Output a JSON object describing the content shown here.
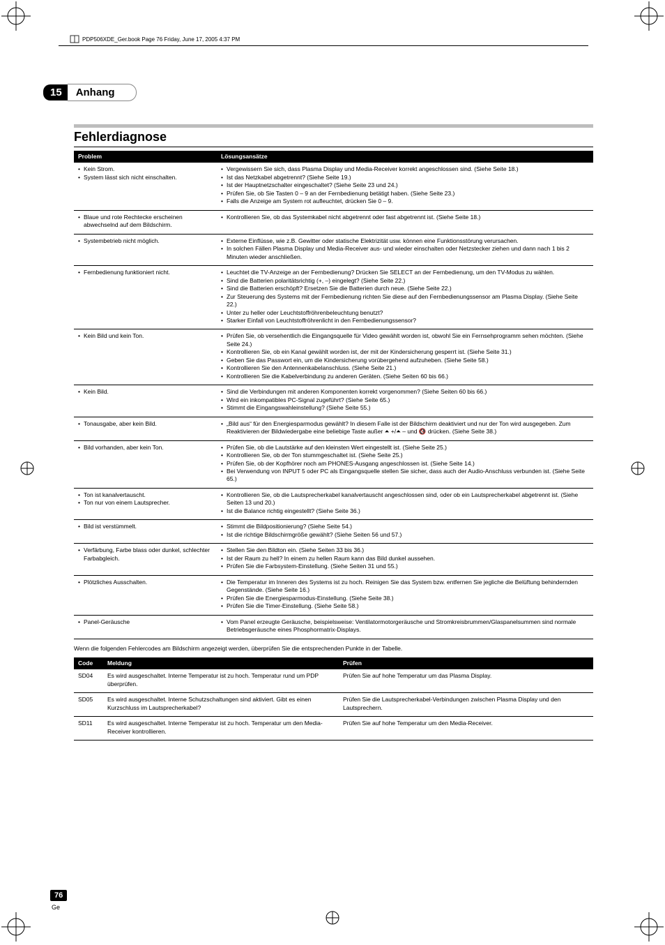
{
  "header": {
    "filename": "PDP506XDE_Ger.book  Page 76  Friday, June 17, 2005  4:37 PM"
  },
  "chapter": {
    "number": "15",
    "title": "Anhang"
  },
  "section_title": "Fehlerdiagnose",
  "trouble_headers": {
    "problem": "Problem",
    "solution": "Lösungsansätze"
  },
  "trouble": [
    {
      "problem": [
        "Kein Strom.",
        "System lässt sich nicht einschalten."
      ],
      "solution": [
        "Vergewissern Sie sich, dass Plasma Display und Media-Receiver korrekt angeschlossen sind. (Siehe Seite 18.)",
        "Ist das Netzkabel abgetrennt? (Siehe Seite 19.)",
        "Ist der Hauptnetzschalter eingeschaltet? (Siehe Seite 23 und 24.)",
        "Prüfen Sie, ob Sie Tasten 0 – 9 an der Fernbedienung betätigt haben. (Siehe Seite 23.)",
        "Falls die Anzeige am System rot aufleuchtet, drücken Sie 0 – 9."
      ]
    },
    {
      "problem": [
        "Blaue und rote Rechtecke erscheinen abwechselnd auf dem Bildschirm."
      ],
      "solution": [
        "Kontrollieren Sie, ob das Systemkabel nicht abgetrennt oder fast abgetrennt ist. (Siehe Seite 18.)"
      ]
    },
    {
      "problem": [
        "Systembetrieb nicht möglich."
      ],
      "solution": [
        "Externe Einflüsse, wie z.B. Gewitter oder statische Elektrizität usw. können eine Funktionsstörung verursachen.",
        "In solchen Fällen Plasma Display und Media-Receiver aus- und wieder einschalten oder Netzstecker ziehen und dann nach 1 bis 2 Minuten wieder anschließen."
      ]
    },
    {
      "problem": [
        "Fernbedienung funktioniert nicht."
      ],
      "solution": [
        "Leuchtet die TV-Anzeige an der Fernbedienung? Drücken Sie SELECT an der Fernbedienung, um den TV-Modus zu wählen.",
        "Sind die Batterien polaritätsrichtig (+, –) eingelegt? (Siehe Seite 22.)",
        "Sind die Batterien erschöpft? Ersetzen Sie die Batterien durch neue. (Siehe Seite 22.)",
        "Zur Steuerung des Systems mit der Fernbedienung richten Sie diese auf den Fernbedienungssensor am Plasma Display. (Siehe Seite 22.)",
        "Unter zu heller oder Leuchtstoffröhrenbeleuchtung benutzt?",
        "Starker Einfall von Leuchtstoffröhrenlicht in den Fernbedienungssensor?"
      ]
    },
    {
      "problem": [
        "Kein Bild und kein Ton."
      ],
      "solution": [
        "Prüfen Sie, ob versehentlich die Eingangsquelle für Video gewählt worden ist, obwohl Sie ein Fernsehprogramm sehen möchten. (Siehe Seite 24.)",
        "Kontrollieren Sie, ob ein Kanal gewählt worden ist, der mit der Kindersicherung gesperrt ist. (Siehe Seite 31.)",
        "Geben Sie das Passwort ein, um die Kindersicherung vorübergehend aufzuheben. (Siehe Seite 58.)",
        "Kontrollieren Sie den Antennenkabelanschluss. (Siehe Seite 21.)",
        "Kontrollieren Sie die Kabelverbindung zu anderen Geräten. (Siehe Seiten 60 bis 66.)"
      ]
    },
    {
      "problem": [
        "Kein Bild."
      ],
      "solution": [
        "Sind die Verbindungen mit anderen Komponenten korrekt vorgenommen? (Siehe Seiten 60 bis 66.)",
        "Wird ein inkompatibles PC-Signal zugeführt? (Siehe Seite 65.)",
        "Stimmt die Eingangswahleinstellung? (Siehe Seite 55.)"
      ]
    },
    {
      "problem": [
        "Tonausgabe, aber kein Bild."
      ],
      "solution": [
        "„Bild aus“ für den Energiesparmodus gewählt? In diesem Falle ist der Bildschirm deaktiviert und nur der Ton wird ausgegeben. Zum Reaktivieren der Bildwiedergabe eine beliebige Taste außer ⏶ +/⏶ – und 🔇 drücken. (Siehe Seite 38.)"
      ]
    },
    {
      "problem": [
        "Bild vorhanden, aber kein Ton."
      ],
      "solution": [
        "Prüfen Sie, ob die Lautstärke auf den kleinsten Wert eingestellt ist. (Siehe Seite 25.)",
        "Kontrollieren Sie, ob der Ton stummgeschaltet ist. (Siehe Seite 25.)",
        "Prüfen Sie, ob der Kopfhörer noch am PHONES-Ausgang angeschlossen ist. (Siehe Seite 14.)",
        "Bei Verwendung von INPUT 5 oder PC als Eingangsquelle stellen Sie sicher, dass auch der Audio-Anschluss verbunden ist. (Siehe Seite 65.)"
      ]
    },
    {
      "problem": [
        "Ton ist kanalvertauscht.",
        "Ton nur von einem Lautsprecher."
      ],
      "solution": [
        "Kontrollieren Sie, ob die Lautsprecherkabel kanalvertauscht angeschlossen sind, oder ob ein Lautsprecherkabel abgetrennt ist. (Siehe Seiten 13 und 20.)",
        "Ist die Balance richtig eingestellt? (Siehe Seite 36.)"
      ]
    },
    {
      "problem": [
        "Bild ist verstümmelt."
      ],
      "solution": [
        "Stimmt die Bildpositionierung? (Siehe Seite 54.)",
        "Ist die richtige Bildschirmgröße gewählt? (Siehe Seiten 56 und 57.)"
      ]
    },
    {
      "problem": [
        "Verfärbung, Farbe blass oder dunkel, schlechter Farbabgleich."
      ],
      "solution": [
        "Stellen Sie den Bildton ein. (Siehe Seiten 33 bis 36.)",
        "Ist der Raum zu hell? In einem zu hellen Raum kann das Bild dunkel aussehen.",
        "Prüfen Sie die Farbsystem-Einstellung. (Siehe Seiten 31 und 55.)"
      ]
    },
    {
      "problem": [
        "Plötzliches Ausschalten."
      ],
      "solution": [
        "Die Temperatur im Inneren des Systems ist zu hoch. Reinigen Sie das System bzw. entfernen Sie jegliche die Belüftung behindernden Gegenstände. (Siehe Seite 16.)",
        "Prüfen Sie die Energiesparmodus-Einstellung. (Siehe Seite 38.)",
        "Prüfen Sie die Timer-Einstellung. (Siehe Seite 58.)"
      ]
    },
    {
      "problem": [
        "Panel-Geräusche"
      ],
      "solution": [
        "Vom Panel erzeugte Geräusche, beispielsweise: Ventilatormotorgeräusche und Stromkreisbrummen/Glaspanelsummen sind normale Betriebsgeräusche eines Phosphormatrix-Displays."
      ]
    }
  ],
  "codes_intro": "Wenn die folgenden Fehlercodes am Bildschirm angezeigt werden, überprüfen Sie die entsprechenden Punkte in der Tabelle.",
  "codes_headers": {
    "code": "Code",
    "meldung": "Meldung",
    "pruefen": "Prüfen"
  },
  "codes": [
    {
      "code": "SD04",
      "meldung": "Es wird ausgeschaltet. Interne Temperatur ist zu hoch. Temperatur rund um PDP überprüfen.",
      "pruefen": "Prüfen Sie auf hohe Temperatur um das Plasma Display."
    },
    {
      "code": "SD05",
      "meldung": "Es wird ausgeschaltet. Interne Schutzschaltungen sind aktiviert. Gibt es einen Kurzschluss im Lautsprecherkabel?",
      "pruefen": "Prüfen Sie die Lautsprecherkabel-Verbindungen zwischen Plasma Display und den Lautsprechern."
    },
    {
      "code": "SD11",
      "meldung": "Es wird ausgeschaltet. Interne Temperatur ist zu hoch. Temperatur um den Media-Receiver kontrollieren.",
      "pruefen": "Prüfen Sie auf hohe Temperatur um den Media-Receiver."
    }
  ],
  "page_number": "76",
  "lang": "Ge",
  "colors": {
    "black": "#000000",
    "grey_bar": "#bdbdbd"
  }
}
